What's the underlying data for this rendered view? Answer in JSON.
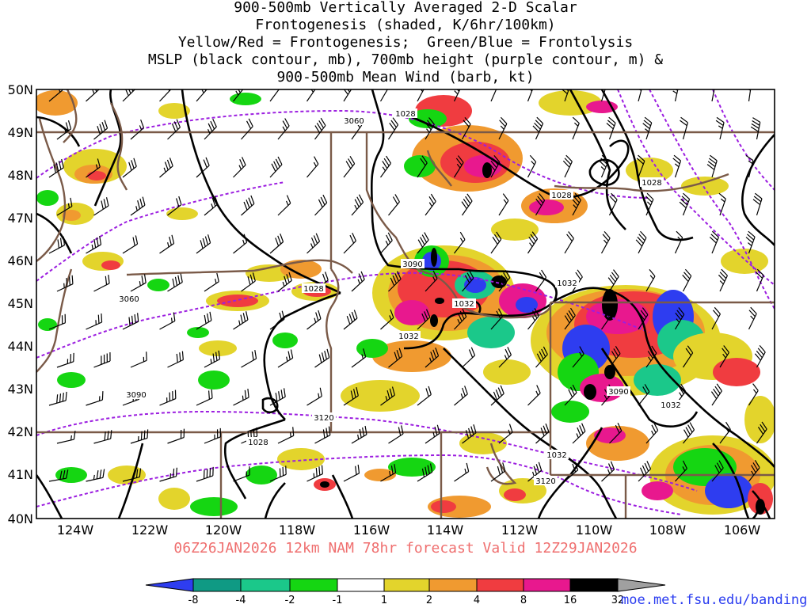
{
  "title": {
    "line1": "900-500mb Vertically Averaged 2-D Scalar",
    "line2": "Frontogenesis (shaded, K/6hr/100km)",
    "line3": "Yellow/Red = Frontogenesis;  Green/Blue = Frontolysis",
    "line4": "MSLP (black contour, mb), 700mb height (purple contour, m) &",
    "line5": "900-500mb Mean Wind (barb, kt)"
  },
  "map": {
    "lat_labels": [
      "50N",
      "49N",
      "48N",
      "47N",
      "46N",
      "45N",
      "44N",
      "43N",
      "42N",
      "41N",
      "40N"
    ],
    "lon_labels": [
      "124W",
      "122W",
      "120W",
      "118W",
      "116W",
      "114W",
      "112W",
      "110W",
      "108W",
      "106W"
    ],
    "pressure_contour_labels": [
      "1028",
      "1028",
      "1028",
      "1028",
      "1028",
      "1032",
      "1032",
      "1032",
      "1032",
      "1032"
    ],
    "height_contour_labels": [
      "3060",
      "3090",
      "3060",
      "3090",
      "3120",
      "3120",
      "3090"
    ],
    "colors": {
      "pressure_contour": "#000000",
      "height_contour": "#9c1ee0",
      "state_borders": "#7a5a48",
      "barbs": "#000000"
    }
  },
  "valid_time": "06Z26JAN2026 12km NAM 78hr forecast Valid 12Z29JAN2026",
  "colorbar": {
    "ticks": [
      "-8",
      "-4",
      "-2",
      "-1",
      "1",
      "2",
      "4",
      "8",
      "16",
      "32"
    ],
    "colors": [
      "#2e3df0",
      "#0f9a84",
      "#1bc88a",
      "#15d612",
      "#ffffff",
      "#e3d42c",
      "#f09a30",
      "#f03c40",
      "#e8188e",
      "#000000",
      "#a0a0a0"
    ]
  },
  "credit": "moe.met.fsu.edu/banding"
}
